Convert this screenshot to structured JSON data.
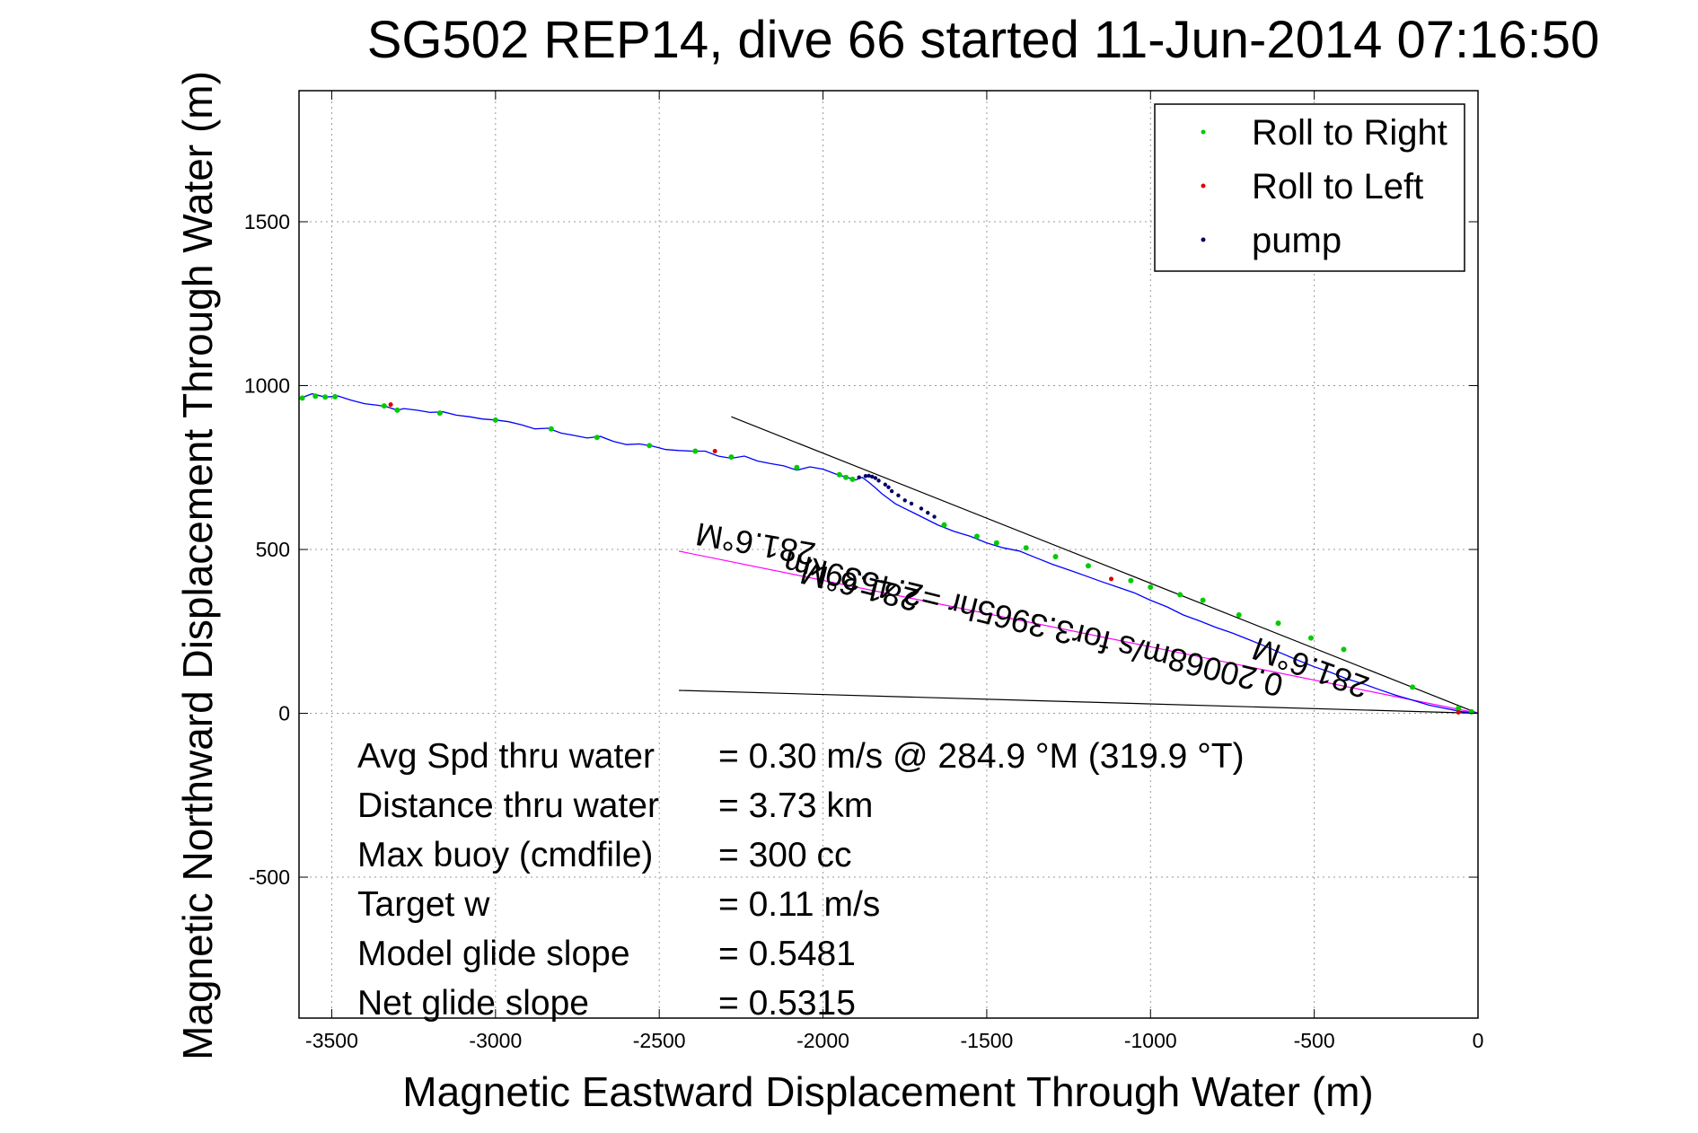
{
  "chart_data": {
    "type": "line",
    "title": "SG502 REP14, dive 66 started 11-Jun-2014 07:16:50",
    "xlabel": "Magnetic Eastward Displacement Through Water (m)",
    "ylabel": "Magnetic Northward Displacement Through Water (m)",
    "xlim": [
      -3600,
      0
    ],
    "ylim": [
      -930,
      1900
    ],
    "xticks": [
      -3500,
      -3000,
      -2500,
      -2000,
      -1500,
      -1000,
      -500,
      0
    ],
    "yticks": [
      -500,
      0,
      500,
      1000,
      1500
    ],
    "grid": true,
    "legend": {
      "placement": "top-right",
      "entries": [
        {
          "label": "Roll to Right",
          "color": "#00cc00"
        },
        {
          "label": "Roll to Left",
          "color": "#dd0000"
        },
        {
          "label": "pump",
          "color": "#000066"
        }
      ]
    },
    "track": {
      "color": "#0000ff",
      "x": [
        -3600,
        -3560,
        -3520,
        -3480,
        -3440,
        -3400,
        -3360,
        -3330,
        -3300,
        -3280,
        -3240,
        -3200,
        -3160,
        -3120,
        -3080,
        -3040,
        -3000,
        -2960,
        -2920,
        -2880,
        -2840,
        -2800,
        -2760,
        -2720,
        -2680,
        -2640,
        -2600,
        -2560,
        -2520,
        -2480,
        -2440,
        -2400,
        -2360,
        -2320,
        -2280,
        -2240,
        -2200,
        -2160,
        -2120,
        -2080,
        -2040,
        -2000,
        -1960,
        -1920,
        -1900,
        -1880,
        -1860,
        -1840,
        -1820,
        -1800,
        -1780,
        -1750,
        -1700,
        -1650,
        -1600,
        -1550,
        -1500,
        -1450,
        -1400,
        -1350,
        -1300,
        -1250,
        -1200,
        -1150,
        -1100,
        -1050,
        -1000,
        -950,
        -900,
        -850,
        -800,
        -750,
        -700,
        -650,
        -600,
        -550,
        -500,
        -450,
        -400,
        -350,
        -300,
        -250,
        -200,
        -150,
        -100,
        -50,
        0
      ],
      "y": [
        960,
        975,
        965,
        968,
        955,
        945,
        940,
        935,
        925,
        930,
        925,
        918,
        920,
        910,
        905,
        898,
        895,
        890,
        880,
        868,
        870,
        855,
        848,
        840,
        845,
        830,
        820,
        822,
        815,
        805,
        802,
        800,
        800,
        785,
        778,
        785,
        770,
        762,
        755,
        742,
        752,
        745,
        730,
        718,
        712,
        720,
        705,
        688,
        670,
        655,
        640,
        625,
        600,
        575,
        555,
        540,
        520,
        505,
        495,
        475,
        455,
        438,
        420,
        402,
        385,
        368,
        345,
        325,
        300,
        282,
        262,
        245,
        225,
        205,
        183,
        162,
        142,
        125,
        105,
        90,
        72,
        55,
        40,
        25,
        15,
        5,
        0
      ]
    },
    "roll_right_x": [
      -3590,
      -3550,
      -3520,
      -3490,
      -3340,
      -3300,
      -3170,
      -3000,
      -2830,
      -2690,
      -2530,
      -2390,
      -2280,
      -2080,
      -1950,
      -1930,
      -1910,
      -1630,
      -1530,
      -1470,
      -1380,
      -1290,
      -1190,
      -1060,
      -1000,
      -910,
      -840,
      -730,
      -610,
      -510,
      -410,
      -200,
      -60,
      -20
    ],
    "roll_right_y": [
      962,
      968,
      965,
      966,
      938,
      925,
      916,
      895,
      868,
      842,
      817,
      800,
      782,
      750,
      728,
      720,
      714,
      575,
      540,
      520,
      505,
      478,
      450,
      405,
      385,
      362,
      345,
      300,
      275,
      230,
      195,
      80,
      15,
      5
    ],
    "roll_left_x": [
      -3320,
      -2330,
      -1120,
      -60
    ],
    "roll_left_y": [
      942,
      800,
      410,
      3
    ],
    "pump_x": [
      -1890,
      -1870,
      -1860,
      -1850,
      -1840,
      -1830,
      -1810,
      -1800,
      -1790,
      -1770,
      -1750,
      -1730,
      -1700,
      -1680,
      -1660
    ],
    "pump_y": [
      720,
      724,
      725,
      722,
      718,
      710,
      698,
      690,
      678,
      665,
      650,
      640,
      625,
      612,
      600
    ],
    "heading_lines": [
      {
        "x": [
          0,
          -2280
        ],
        "y": [
          0,
          905
        ],
        "color": "#000000"
      },
      {
        "x": [
          0,
          -2440
        ],
        "y": [
          0,
          495
        ],
        "color": "#ff00ff"
      },
      {
        "x": [
          0,
          -2440
        ],
        "y": [
          0,
          70
        ],
        "color": "#000000"
      }
    ],
    "annotations": [
      {
        "text": "281.6°M",
        "x": -2200,
        "y": 550,
        "rotation": 190
      },
      {
        "text": "0.20068m/s for3.3965hr =2.4539km",
        "x": -1350,
        "y": 305,
        "rotation": 194
      },
      {
        "text": "281.6°M",
        "x": -1880,
        "y": 420,
        "rotation": 194
      },
      {
        "text": "281.6°M",
        "x": -500,
        "y": 170,
        "rotation": 200
      }
    ],
    "stats": [
      {
        "label": "Avg Spd thru water",
        "value": "=  0.30 m/s @ 284.9 °M (319.9 °T)"
      },
      {
        "label": "Distance thru water",
        "value": "=  3.73 km"
      },
      {
        "label": "Max buoy (cmdfile)",
        "value": "= 300 cc"
      },
      {
        "label": "Target w",
        "value": "= 0.11 m/s"
      },
      {
        "label": "Model glide slope",
        "value": "= 0.5481"
      },
      {
        "label": "Net glide slope",
        "value": "= 0.5315"
      }
    ]
  }
}
